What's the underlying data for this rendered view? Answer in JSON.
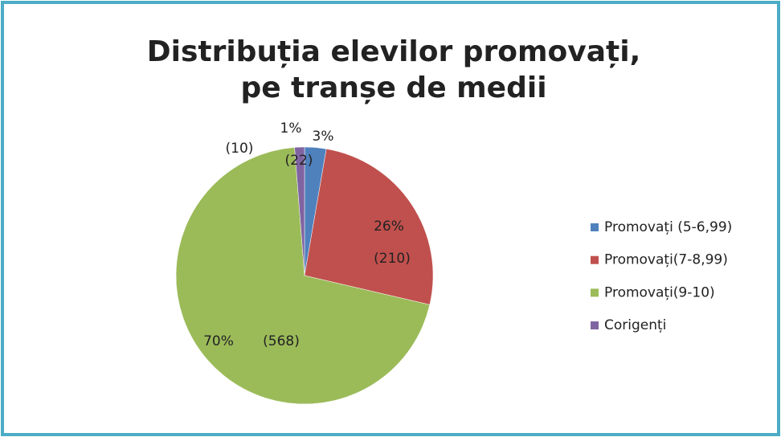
{
  "chart_data": {
    "type": "pie",
    "title": "Distribuția elevilor promovați,",
    "subtitle": "pe tranșe de medii",
    "categories": [
      "Promovați (5-6,99)",
      "Promovați(7-8,99)",
      "Promovați(9-10)",
      "Corigenți"
    ],
    "values": [
      3,
      26,
      70,
      1
    ],
    "value_labels": [
      "3%",
      "26%",
      "70%",
      "1%"
    ],
    "counts": [
      22,
      210,
      568,
      10
    ],
    "count_labels": [
      "(22)",
      "(210)",
      "(568)",
      "(10)"
    ],
    "colors": [
      "#4f81bd",
      "#c0504d",
      "#9bbb59",
      "#8064a2"
    ],
    "legend": "right"
  }
}
